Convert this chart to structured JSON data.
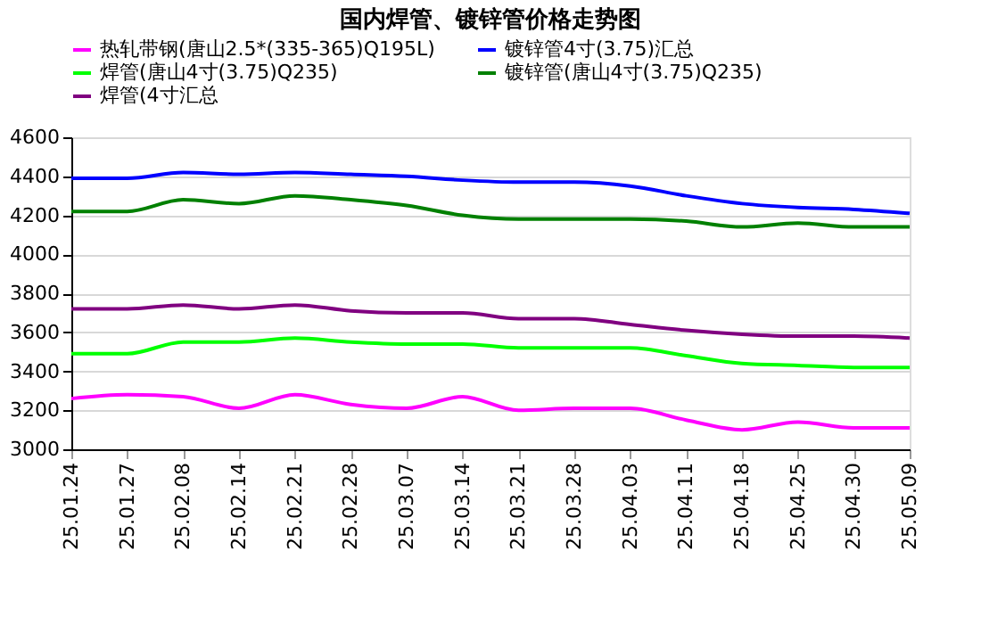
{
  "chart_data": {
    "type": "line",
    "title": "国内焊管、镀锌管价格走势图",
    "categories": [
      "25.01.24",
      "25.01.27",
      "25.02.08",
      "25.02.14",
      "25.02.21",
      "25.02.28",
      "25.03.07",
      "25.03.14",
      "25.03.21",
      "25.03.28",
      "25.04.03",
      "25.04.11",
      "25.04.18",
      "25.04.25",
      "25.04.30",
      "25.05.09"
    ],
    "series": [
      {
        "name": "热轧带钢(唐山2.5*(335-365)Q195L)",
        "color": "#ff00ff",
        "values": [
          3260,
          3280,
          3270,
          3210,
          3280,
          3230,
          3210,
          3270,
          3200,
          3210,
          3210,
          3150,
          3100,
          3140,
          3110,
          3110
        ]
      },
      {
        "name": "镀锌管4寸(3.75)汇总",
        "color": "#0000ff",
        "values": [
          4390,
          4390,
          4420,
          4410,
          4420,
          4410,
          4400,
          4380,
          4370,
          4370,
          4350,
          4300,
          4260,
          4240,
          4230,
          4210
        ]
      },
      {
        "name": "焊管(唐山4寸(3.75)Q235)",
        "color": "#00ff00",
        "values": [
          3490,
          3490,
          3550,
          3550,
          3570,
          3550,
          3540,
          3540,
          3520,
          3520,
          3520,
          3480,
          3440,
          3430,
          3420,
          3420
        ]
      },
      {
        "name": "镀锌管(唐山4寸(3.75)Q235)",
        "color": "#008000",
        "values": [
          4220,
          4220,
          4280,
          4260,
          4300,
          4280,
          4250,
          4200,
          4180,
          4180,
          4180,
          4170,
          4140,
          4160,
          4140,
          4140
        ]
      },
      {
        "name": "焊管(4寸汇总",
        "color": "#800080",
        "values": [
          3720,
          3720,
          3740,
          3720,
          3740,
          3710,
          3700,
          3700,
          3670,
          3670,
          3640,
          3610,
          3590,
          3580,
          3580,
          3570
        ]
      }
    ],
    "ylim": [
      3000,
      4600
    ],
    "yticks": [
      3000,
      3200,
      3400,
      3600,
      3800,
      4000,
      4200,
      4400,
      4600
    ],
    "grid": "y",
    "legend": "top",
    "marker": "none",
    "line_style": "solid"
  }
}
